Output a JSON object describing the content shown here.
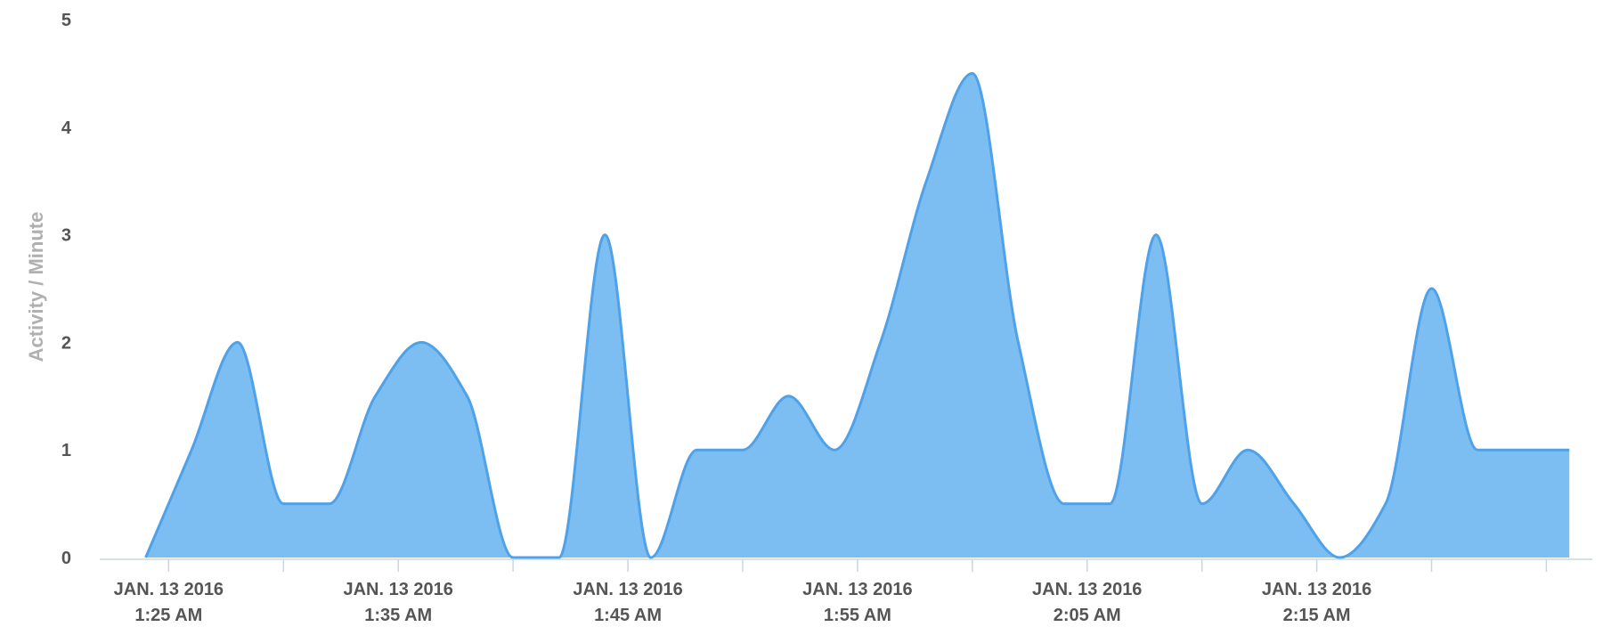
{
  "chart_data": {
    "type": "area",
    "ylabel": "Activity / Minute",
    "xlabel": "",
    "title": "",
    "ylim": [
      0,
      5
    ],
    "yticks": [
      0,
      1,
      2,
      3,
      4,
      5
    ],
    "xlim": [
      "1:22 AM",
      "2:27 AM"
    ],
    "xticks": [
      {
        "date": "JAN. 13 2016",
        "time": "1:25 AM"
      },
      {
        "date": "JAN. 13 2016",
        "time": "1:35 AM"
      },
      {
        "date": "JAN. 13 2016",
        "time": "1:45 AM"
      },
      {
        "date": "JAN. 13 2016",
        "time": "1:55 AM"
      },
      {
        "date": "JAN. 13 2016",
        "time": "2:05 AM"
      },
      {
        "date": "JAN. 13 2016",
        "time": "2:15 AM"
      }
    ],
    "x": [
      "1:24 AM",
      "1:26 AM",
      "1:28 AM",
      "1:30 AM",
      "1:32 AM",
      "1:34 AM",
      "1:36 AM",
      "1:38 AM",
      "1:40 AM",
      "1:42 AM",
      "1:44 AM",
      "1:46 AM",
      "1:48 AM",
      "1:50 AM",
      "1:52 AM",
      "1:54 AM",
      "1:56 AM",
      "1:58 AM",
      "2:00 AM",
      "2:02 AM",
      "2:04 AM",
      "2:06 AM",
      "2:08 AM",
      "2:10 AM",
      "2:12 AM",
      "2:14 AM",
      "2:16 AM",
      "2:18 AM",
      "2:20 AM",
      "2:22 AM",
      "2:24 AM",
      "2:26 AM"
    ],
    "values": [
      0,
      1,
      2,
      0.5,
      0.5,
      1.5,
      2,
      1.5,
      0,
      0,
      3,
      0,
      1,
      1,
      1.5,
      1,
      2,
      3.5,
      4.5,
      2,
      0.5,
      0.5,
      3,
      0.5,
      1,
      0.5,
      0,
      0.5,
      2.5,
      1,
      1,
      1
    ],
    "grid": false,
    "legend": "none",
    "series_color": "#7cbdf2",
    "line_color": "#4fa1e8",
    "tick_label_color": "#555555",
    "axis_title_color": "#b0b0b0"
  }
}
